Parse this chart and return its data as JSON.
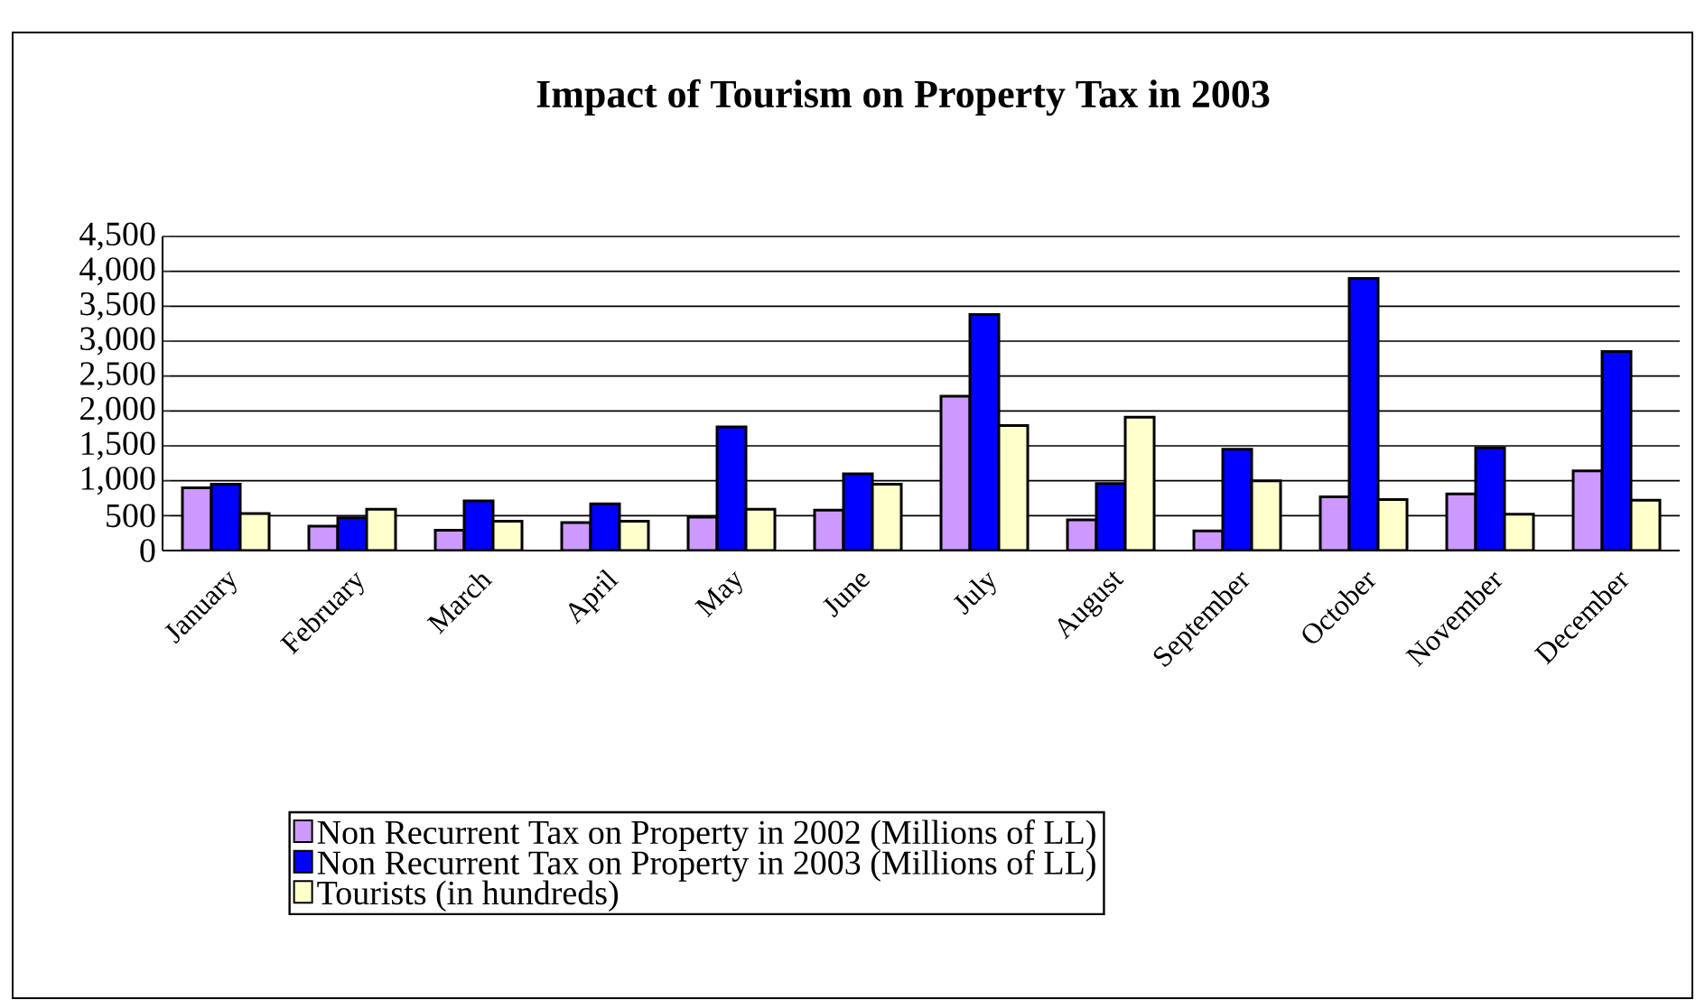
{
  "chart_data": {
    "type": "bar",
    "title": "Impact of Tourism on Property Tax in 2003",
    "categories": [
      "January",
      "February",
      "March",
      "April",
      "May",
      "June",
      "July",
      "August",
      "September",
      "October",
      "November",
      "December"
    ],
    "series": [
      {
        "name": "Non Recurrent Tax on Property in 2002 (Millions of LL)",
        "color": "#cc99ff",
        "values": [
          900,
          350,
          290,
          400,
          480,
          580,
          2210,
          440,
          280,
          770,
          810,
          1140
        ]
      },
      {
        "name": "Non Recurrent Tax on Property in 2003 (Millions of LL)",
        "color": "#0000ff",
        "values": [
          950,
          470,
          710,
          670,
          1770,
          1100,
          3380,
          960,
          1450,
          3900,
          1470,
          2850
        ]
      },
      {
        "name": "Tourists (in hundreds)",
        "color": "#ffffcc",
        "values": [
          530,
          590,
          420,
          420,
          590,
          950,
          1790,
          1910,
          1000,
          730,
          520,
          720
        ]
      }
    ],
    "ylim": [
      0,
      4500
    ],
    "yticks": [
      0,
      500,
      {
        "value": 1000,
        "label": "1,000"
      },
      {
        "value": 1500,
        "label": "1,500"
      },
      {
        "value": 2000,
        "label": "2,000"
      },
      {
        "value": 2500,
        "label": "2,500"
      },
      {
        "value": 3000,
        "label": "3,000"
      },
      {
        "value": 3500,
        "label": "3,500"
      },
      {
        "value": 4000,
        "label": "4,000"
      },
      {
        "value": 4500,
        "label": "4,500"
      }
    ],
    "grid": "y",
    "legend": "bottom"
  }
}
